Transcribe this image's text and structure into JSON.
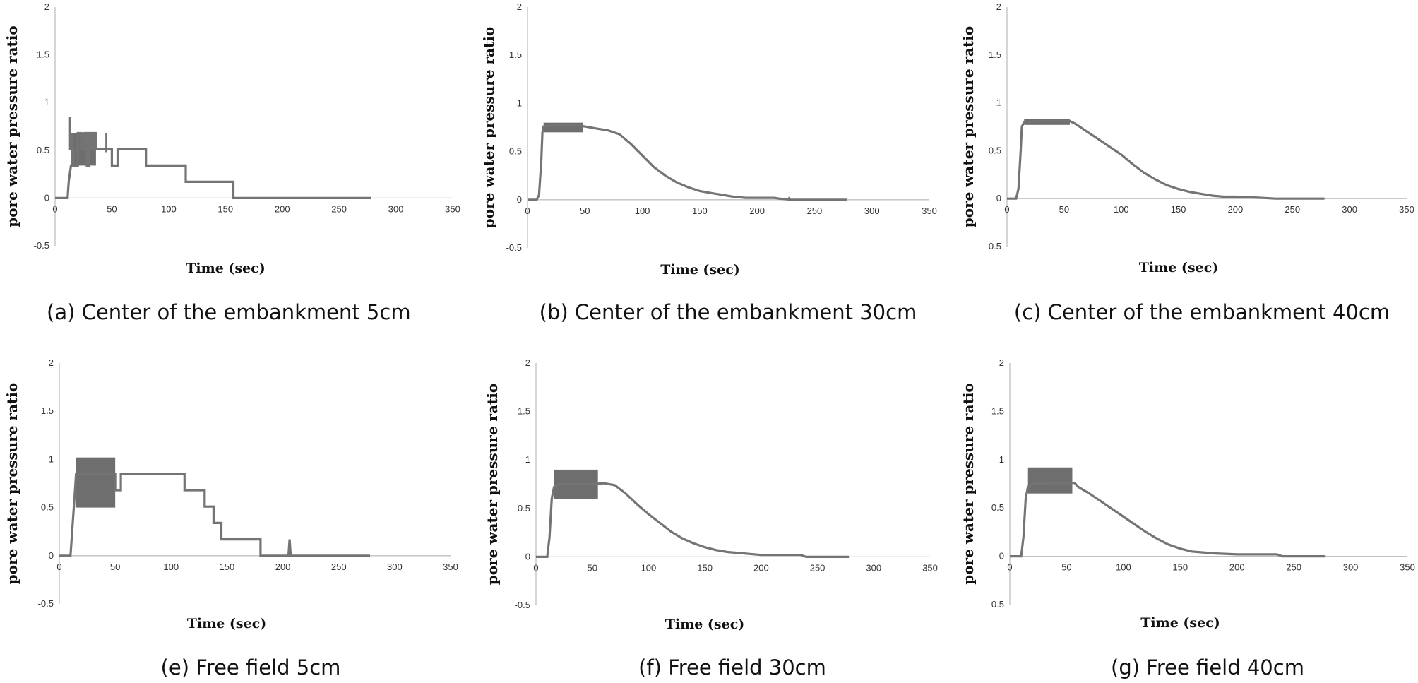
{
  "chart_data": [
    {
      "type": "line",
      "caption": "(a) Center of the embankment 5cm",
      "xlabel": "Time (sec)",
      "ylabel": "pore water pressure ratio",
      "xlim": [
        0,
        350
      ],
      "ylim": [
        -0.5,
        2
      ],
      "xticks": [
        0,
        50,
        100,
        150,
        200,
        250,
        300,
        350
      ],
      "yticks": [
        -0.5,
        0,
        0.5,
        1,
        1.5,
        2
      ],
      "grid": false,
      "color": "#747474",
      "series": [
        {
          "line": [
            [
              0,
              0
            ],
            [
              11,
              0
            ],
            [
              12,
              0.17
            ],
            [
              14,
              0.34
            ],
            [
              15,
              0.34
            ],
            [
              15,
              0.51
            ],
            [
              16,
              0.51
            ],
            [
              16,
              0.34
            ],
            [
              20,
              0.34
            ],
            [
              20,
              0.68
            ],
            [
              23,
              0.68
            ],
            [
              23,
              0.51
            ],
            [
              26,
              0.51
            ],
            [
              26,
              0.68
            ],
            [
              28,
              0.68
            ],
            [
              28,
              0.34
            ],
            [
              30,
              0.34
            ],
            [
              30,
              0.68
            ],
            [
              32,
              0.68
            ],
            [
              32,
              0.51
            ],
            [
              34,
              0.51
            ],
            [
              34,
              0.68
            ],
            [
              36,
              0.68
            ],
            [
              36,
              0.51
            ],
            [
              50,
              0.51
            ],
            [
              50,
              0.34
            ],
            [
              55,
              0.34
            ],
            [
              55,
              0.51
            ],
            [
              80,
              0.51
            ],
            [
              80,
              0.34
            ],
            [
              115,
              0.34
            ],
            [
              115,
              0.17
            ],
            [
              157,
              0.17
            ],
            [
              157,
              0
            ],
            [
              278,
              0
            ]
          ],
          "band": {
            "x0": 14,
            "x1": 36,
            "low": 0.34,
            "high": 0.68
          },
          "spikes": [
            [
              13,
              0.85
            ],
            [
              15,
              0.68
            ],
            [
              45,
              0.68
            ]
          ]
        }
      ]
    },
    {
      "type": "line",
      "caption": "(b) Center of the embankment 30cm",
      "xlabel": "Time (sec)",
      "ylabel": "pore water pressure ratio",
      "xlim": [
        0,
        350
      ],
      "ylim": [
        -0.5,
        2
      ],
      "xticks": [
        0,
        50,
        100,
        150,
        200,
        250,
        300,
        350
      ],
      "yticks": [
        -0.5,
        0,
        0.5,
        1,
        1.5,
        2
      ],
      "grid": false,
      "color": "#747474",
      "series": [
        {
          "line": [
            [
              0,
              0
            ],
            [
              8,
              0
            ],
            [
              10,
              0.05
            ],
            [
              12,
              0.4
            ],
            [
              13,
              0.7
            ],
            [
              14,
              0.76
            ],
            [
              20,
              0.77
            ],
            [
              45,
              0.77
            ],
            [
              50,
              0.76
            ],
            [
              60,
              0.74
            ],
            [
              70,
              0.72
            ],
            [
              80,
              0.68
            ],
            [
              90,
              0.58
            ],
            [
              100,
              0.46
            ],
            [
              110,
              0.34
            ],
            [
              120,
              0.25
            ],
            [
              130,
              0.18
            ],
            [
              140,
              0.13
            ],
            [
              150,
              0.09
            ],
            [
              160,
              0.07
            ],
            [
              170,
              0.05
            ],
            [
              180,
              0.03
            ],
            [
              190,
              0.02
            ],
            [
              200,
              0.02
            ],
            [
              215,
              0.02
            ],
            [
              220,
              0.01
            ],
            [
              230,
              0.0
            ],
            [
              250,
              0.0
            ],
            [
              278,
              0.0
            ]
          ],
          "band": {
            "x0": 14,
            "x1": 48,
            "low": 0.7,
            "high": 0.8
          },
          "spikes": [
            [
              228,
              0.03
            ]
          ]
        }
      ]
    },
    {
      "type": "line",
      "caption": "(c) Center of the  embankment 40cm",
      "xlabel": "Time (sec)",
      "ylabel": "pore water pressure ratio",
      "xlim": [
        0,
        350
      ],
      "ylim": [
        -0.5,
        2
      ],
      "xticks": [
        0,
        50,
        100,
        150,
        200,
        250,
        300,
        350
      ],
      "yticks": [
        -0.5,
        0,
        0.5,
        1,
        1.5,
        2
      ],
      "grid": false,
      "color": "#747474",
      "series": [
        {
          "line": [
            [
              0,
              0
            ],
            [
              8,
              0
            ],
            [
              10,
              0.1
            ],
            [
              12,
              0.5
            ],
            [
              13,
              0.75
            ],
            [
              15,
              0.8
            ],
            [
              30,
              0.81
            ],
            [
              55,
              0.81
            ],
            [
              60,
              0.78
            ],
            [
              70,
              0.7
            ],
            [
              80,
              0.62
            ],
            [
              90,
              0.54
            ],
            [
              100,
              0.46
            ],
            [
              110,
              0.36
            ],
            [
              120,
              0.27
            ],
            [
              130,
              0.2
            ],
            [
              140,
              0.14
            ],
            [
              150,
              0.1
            ],
            [
              160,
              0.07
            ],
            [
              170,
              0.05
            ],
            [
              180,
              0.03
            ],
            [
              190,
              0.02
            ],
            [
              200,
              0.02
            ],
            [
              220,
              0.01
            ],
            [
              235,
              0.0
            ],
            [
              278,
              0.0
            ]
          ],
          "band": {
            "x0": 15,
            "x1": 55,
            "low": 0.77,
            "high": 0.83
          },
          "spikes": []
        }
      ]
    },
    {
      "type": "line",
      "caption": "(e) Free field 5cm",
      "xlabel": "Time (sec)",
      "ylabel": "pore water pressure ratio",
      "xlim": [
        0,
        350
      ],
      "ylim": [
        -0.5,
        2
      ],
      "xticks": [
        0,
        50,
        100,
        150,
        200,
        250,
        300,
        350
      ],
      "yticks": [
        -0.5,
        0,
        0.5,
        1,
        1.5,
        2
      ],
      "grid": false,
      "color": "#747474",
      "series": [
        {
          "line": [
            [
              0,
              0
            ],
            [
              10,
              0
            ],
            [
              11,
              0.17
            ],
            [
              12,
              0.34
            ],
            [
              13,
              0.51
            ],
            [
              14,
              0.68
            ],
            [
              15,
              0.85
            ],
            [
              50,
              0.85
            ],
            [
              50,
              0.68
            ],
            [
              55,
              0.68
            ],
            [
              55,
              0.85
            ],
            [
              112,
              0.85
            ],
            [
              112,
              0.68
            ],
            [
              130,
              0.68
            ],
            [
              130,
              0.51
            ],
            [
              138,
              0.51
            ],
            [
              138,
              0.34
            ],
            [
              145,
              0.34
            ],
            [
              145,
              0.17
            ],
            [
              180,
              0.17
            ],
            [
              180,
              0
            ],
            [
              205,
              0
            ],
            [
              206,
              0.17
            ],
            [
              207,
              0
            ],
            [
              278,
              0
            ]
          ],
          "band": {
            "x0": 15,
            "x1": 50,
            "low": 0.5,
            "high": 1.02
          },
          "spikes": []
        }
      ]
    },
    {
      "type": "line",
      "caption": "(f) Free field 30cm",
      "xlabel": "Time (sec)",
      "ylabel": "pore water pressure ratio",
      "xlim": [
        0,
        350
      ],
      "ylim": [
        -0.5,
        2
      ],
      "xticks": [
        0,
        50,
        100,
        150,
        200,
        250,
        300,
        350
      ],
      "yticks": [
        -0.5,
        0,
        0.5,
        1,
        1.5,
        2
      ],
      "grid": false,
      "color": "#747474",
      "series": [
        {
          "line": [
            [
              0,
              0
            ],
            [
              10,
              0
            ],
            [
              12,
              0.2
            ],
            [
              14,
              0.6
            ],
            [
              16,
              0.72
            ],
            [
              20,
              0.75
            ],
            [
              50,
              0.75
            ],
            [
              60,
              0.76
            ],
            [
              70,
              0.74
            ],
            [
              80,
              0.65
            ],
            [
              90,
              0.54
            ],
            [
              100,
              0.44
            ],
            [
              110,
              0.35
            ],
            [
              120,
              0.26
            ],
            [
              130,
              0.19
            ],
            [
              140,
              0.14
            ],
            [
              150,
              0.1
            ],
            [
              160,
              0.07
            ],
            [
              170,
              0.05
            ],
            [
              180,
              0.04
            ],
            [
              190,
              0.03
            ],
            [
              200,
              0.02
            ],
            [
              235,
              0.02
            ],
            [
              240,
              0.0
            ],
            [
              278,
              0.0
            ]
          ],
          "band": {
            "x0": 16,
            "x1": 55,
            "low": 0.6,
            "high": 0.9
          },
          "spikes": []
        }
      ]
    },
    {
      "type": "line",
      "caption": "(g) Free field 40cm",
      "xlabel": "Time (sec)",
      "ylabel": "pore water pressure ratio",
      "xlim": [
        0,
        350
      ],
      "ylim": [
        -0.5,
        2
      ],
      "xticks": [
        0,
        50,
        100,
        150,
        200,
        250,
        300,
        350
      ],
      "yticks": [
        -0.5,
        0,
        0.5,
        1,
        1.5,
        2
      ],
      "grid": false,
      "color": "#747474",
      "series": [
        {
          "line": [
            [
              0,
              0
            ],
            [
              10,
              0
            ],
            [
              12,
              0.2
            ],
            [
              14,
              0.6
            ],
            [
              16,
              0.72
            ],
            [
              20,
              0.75
            ],
            [
              50,
              0.76
            ],
            [
              57,
              0.76
            ],
            [
              60,
              0.72
            ],
            [
              70,
              0.65
            ],
            [
              80,
              0.57
            ],
            [
              90,
              0.49
            ],
            [
              100,
              0.41
            ],
            [
              110,
              0.33
            ],
            [
              120,
              0.25
            ],
            [
              130,
              0.18
            ],
            [
              140,
              0.12
            ],
            [
              150,
              0.08
            ],
            [
              160,
              0.05
            ],
            [
              170,
              0.04
            ],
            [
              180,
              0.03
            ],
            [
              200,
              0.02
            ],
            [
              235,
              0.02
            ],
            [
              240,
              0.0
            ],
            [
              278,
              0.0
            ]
          ],
          "band": {
            "x0": 16,
            "x1": 55,
            "low": 0.65,
            "high": 0.92
          },
          "spikes": []
        }
      ]
    }
  ]
}
